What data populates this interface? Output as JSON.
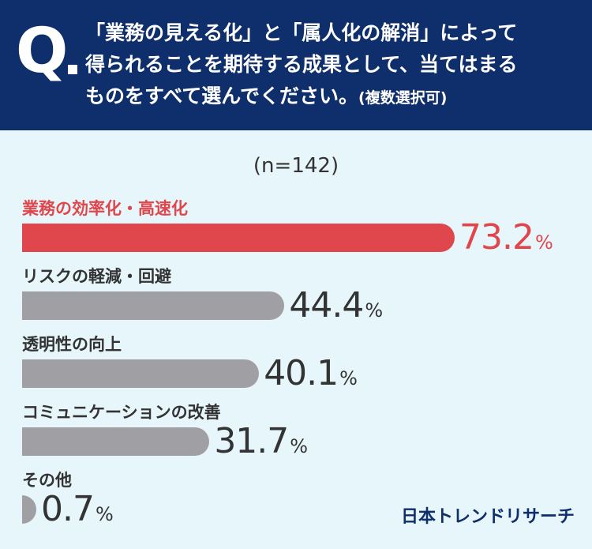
{
  "header": {
    "q_mark": "Q",
    "question_lines": [
      "「業務の見える化」と「属人化の解消」によって",
      "得られることを期待する成果として、当てはまる",
      "ものをすべて選んでください。"
    ],
    "question_note": "(複数選択可)"
  },
  "sample_size": "(n=142)",
  "colors": {
    "header_bg": "#0e2f6b",
    "page_bg": "#e6f6fb",
    "highlight": "#e0474c",
    "bar_gray": "#a0a0a4",
    "text": "#333333"
  },
  "chart_data": {
    "type": "bar",
    "orientation": "horizontal",
    "unit": "%",
    "xlim": [
      0,
      100
    ],
    "categories": [
      "業務の効率化・高速化",
      "リスクの軽減・回避",
      "透明性の向上",
      "コミュニケーションの改善",
      "その他"
    ],
    "values": [
      73.2,
      44.4,
      40.1,
      31.7,
      0.7
    ],
    "value_labels": [
      "73.2",
      "44.4",
      "40.1",
      "31.7",
      "0.7"
    ],
    "highlight_index": 0
  },
  "logo": "日本トレンドリサーチ"
}
